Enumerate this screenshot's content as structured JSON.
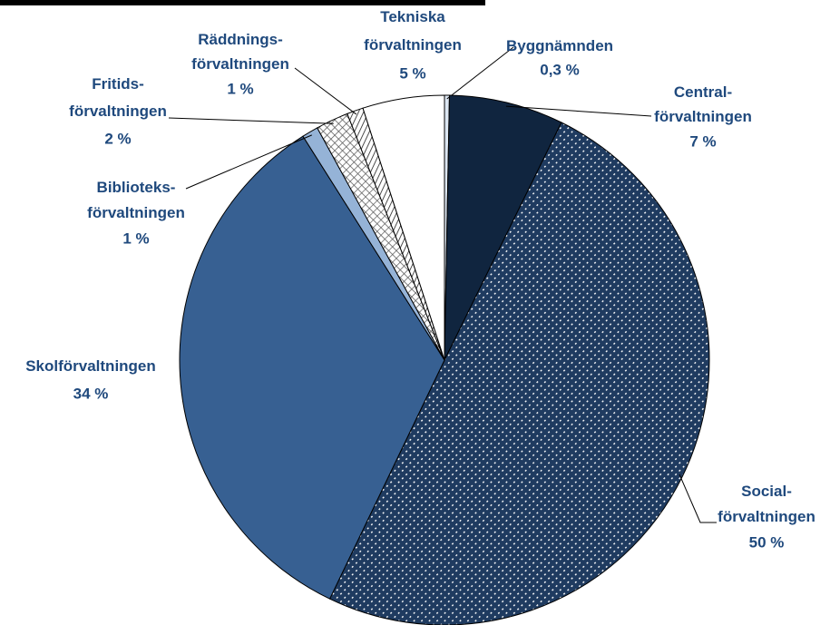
{
  "chart_data": {
    "type": "pie",
    "categories": [
      "Byggnämnden",
      "Central-\nförvaltningen",
      "Social-\nförvaltningen",
      "Skolförvaltningen",
      "Biblioteks-\nförvaltningen",
      "Fritids-\nförvaltningen",
      "Räddnings-\nförvaltningen",
      "Tekniska\nförvaltningen"
    ],
    "values": [
      0.3,
      7,
      50,
      34,
      1,
      2,
      1,
      5
    ],
    "value_labels": [
      "0,3 %",
      "7 %",
      "50 %",
      "34 %",
      "1 %",
      "2 %",
      "1 %",
      "5 %"
    ],
    "colors": [
      "#dce6f2",
      "#10253f",
      "#1f3b60",
      "#376092",
      "#95b3d7",
      "#ffffff",
      "#ffffff",
      "#ffffff"
    ],
    "patterns": [
      null,
      null,
      "dots",
      null,
      null,
      "cross",
      "stripes",
      null
    ]
  }
}
